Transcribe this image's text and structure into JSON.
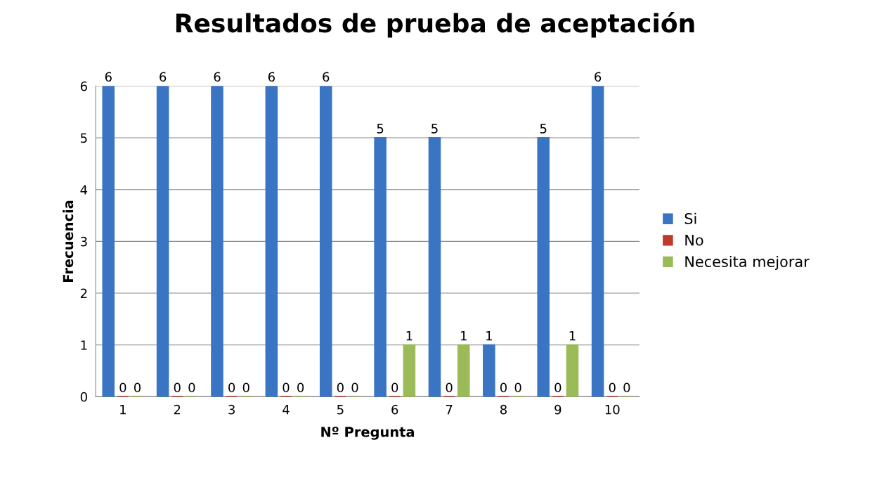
{
  "chart_data": {
    "type": "bar",
    "title": "Resultados de prueba de aceptación",
    "xlabel": "Nº Pregunta",
    "ylabel": "Frecuencia",
    "categories": [
      "1",
      "2",
      "3",
      "4",
      "5",
      "6",
      "7",
      "8",
      "9",
      "10"
    ],
    "series": [
      {
        "name": "Si",
        "color": "#3a75c4",
        "values": [
          6,
          6,
          6,
          6,
          6,
          5,
          5,
          1,
          5,
          6
        ]
      },
      {
        "name": "No",
        "color": "#c0392b",
        "values": [
          0,
          0,
          0,
          0,
          0,
          0,
          0,
          0,
          0,
          0
        ]
      },
      {
        "name": "Necesita mejorar",
        "color": "#9bbb59",
        "values": [
          0,
          0,
          0,
          0,
          0,
          1,
          1,
          0,
          1,
          0
        ]
      }
    ],
    "ylim": [
      0,
      6
    ],
    "yticks": [
      0,
      1,
      2,
      3,
      4,
      5,
      6
    ],
    "grid": "y",
    "legend": "right",
    "data_labels": true
  }
}
